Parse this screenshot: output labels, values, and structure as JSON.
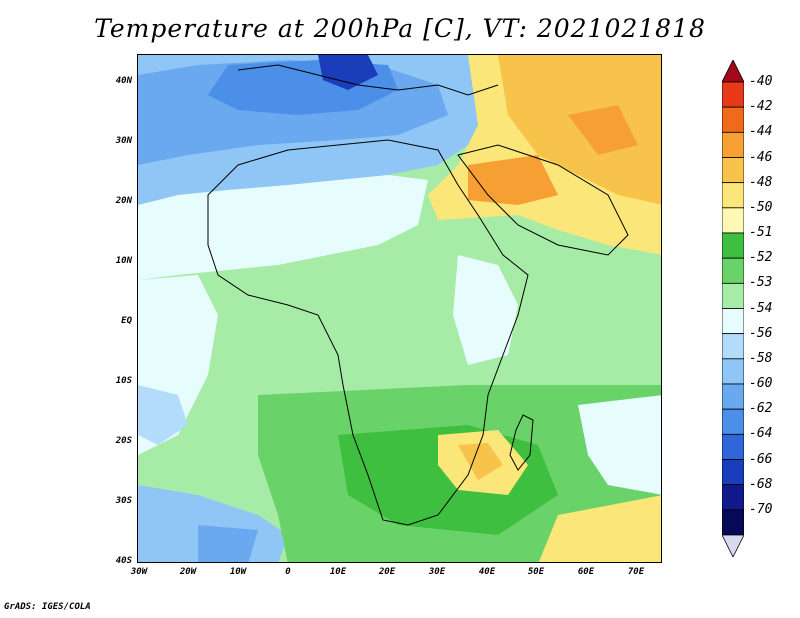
{
  "title": "Temperature at 200hPa [C], VT: 2021021818",
  "credit": "GrADS: IGES/COLA",
  "y_ticks": [
    "40N",
    "30N",
    "20N",
    "10N",
    "EQ",
    "10S",
    "20S",
    "30S",
    "40S"
  ],
  "x_ticks": [
    "30W",
    "20W",
    "10W",
    "0",
    "10E",
    "20E",
    "30E",
    "40E",
    "50E",
    "60E",
    "70E"
  ],
  "colorbar": {
    "labels": [
      "-40",
      "-42",
      "-44",
      "-46",
      "-48",
      "-50",
      "-51",
      "-52",
      "-53",
      "-54",
      "-56",
      "-58",
      "-60",
      "-62",
      "-64",
      "-66",
      "-68",
      "-70"
    ],
    "colors": [
      "#a3081a",
      "#e83a19",
      "#ef6a1b",
      "#f6a033",
      "#f8c34b",
      "#fbe67a",
      "#fdf8b4",
      "#3fbf3f",
      "#69d369",
      "#a6eca6",
      "#e7fdfd",
      "#b3dcfa",
      "#90c6f6",
      "#6aa8ef",
      "#4b8fe8",
      "#2f66d8",
      "#1a3dbc",
      "#101a8b",
      "#080858",
      "#d8d8f0"
    ]
  }
}
